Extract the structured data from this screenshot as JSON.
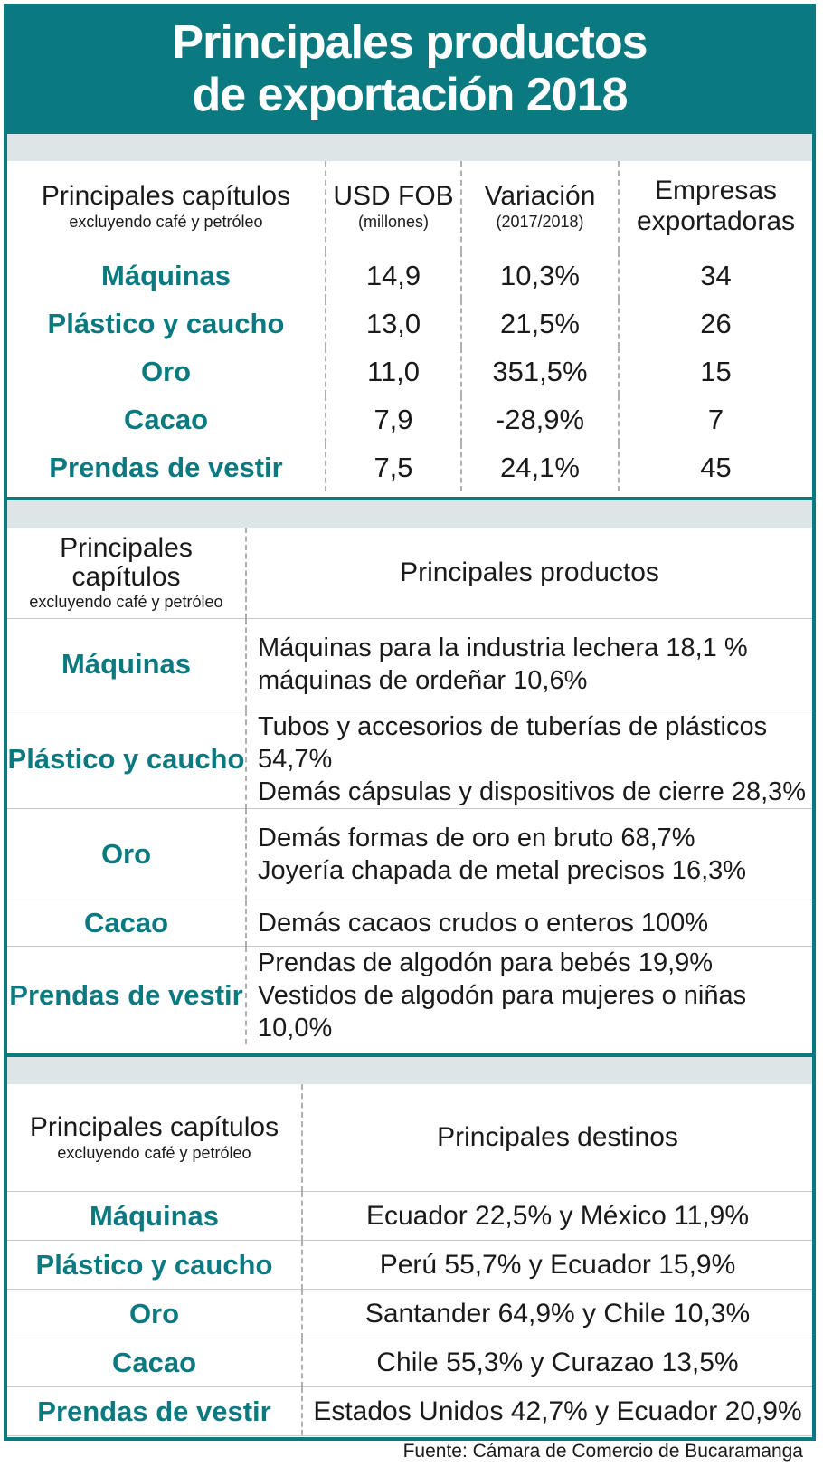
{
  "title": [
    "Principales productos",
    "de exportación 2018"
  ],
  "accent_color": "#0a7a80",
  "table1": {
    "headers": {
      "chapter": "Principales capítulos",
      "chapter_sub": "excluyendo café y petróleo",
      "usd": "USD FOB",
      "usd_sub": "(millones)",
      "variation": "Variación",
      "variation_sub": "(2017/2018)",
      "companies": "Empresas exportadoras"
    },
    "rows": [
      {
        "chapter": "Máquinas",
        "usd": "14,9",
        "variation": "10,3%",
        "companies": "34"
      },
      {
        "chapter": "Plástico y caucho",
        "usd": "13,0",
        "variation": "21,5%",
        "companies": "26"
      },
      {
        "chapter": "Oro",
        "usd": "11,0",
        "variation": "351,5%",
        "companies": "15"
      },
      {
        "chapter": "Cacao",
        "usd": "7,9",
        "variation": "-28,9%",
        "companies": "7"
      },
      {
        "chapter": "Prendas de vestir",
        "usd": "7,5",
        "variation": "24,1%",
        "companies": "45"
      }
    ]
  },
  "table2": {
    "headers": {
      "chapter": "Principales capítulos",
      "chapter_sub": "excluyendo café y petróleo",
      "products": "Principales productos"
    },
    "rows": [
      {
        "chapter": "Máquinas",
        "line1": "Máquinas para la industria lechera 18,1 %",
        "line2": "máquinas de ordeñar 10,6%"
      },
      {
        "chapter": "Plástico y caucho",
        "line1": "Tubos y accesorios de tuberías de plásticos 54,7%",
        "line2": "Demás cápsulas y dispositivos de cierre 28,3%"
      },
      {
        "chapter": "Oro",
        "line1": "Demás formas de oro en bruto 68,7%",
        "line2": "Joyería chapada de metal precisos 16,3%"
      },
      {
        "chapter": "Cacao",
        "line1": "Demás cacaos crudos o enteros 100%",
        "line2": ""
      },
      {
        "chapter": "Prendas de vestir",
        "line1": "Prendas de algodón para bebés 19,9%",
        "line2": "Vestidos de algodón para mujeres o niñas 10,0%"
      }
    ]
  },
  "table3": {
    "headers": {
      "chapter": "Principales capítulos",
      "chapter_sub": "excluyendo café y petróleo",
      "destinations": "Principales destinos"
    },
    "rows": [
      {
        "chapter": "Máquinas",
        "destinations": "Ecuador 22,5% y México 11,9%"
      },
      {
        "chapter": "Plástico y caucho",
        "destinations": "Perú 55,7% y  Ecuador 15,9%"
      },
      {
        "chapter": "Oro",
        "destinations": "Santander 64,9% y Chile 10,3%"
      },
      {
        "chapter": "Cacao",
        "destinations": "Chile 55,3% y Curazao 13,5%"
      },
      {
        "chapter": "Prendas de vestir",
        "destinations": "Estados Unidos 42,7% y Ecuador 20,9%"
      }
    ]
  },
  "source": "Fuente: Cámara de Comercio de Bucaramanga"
}
